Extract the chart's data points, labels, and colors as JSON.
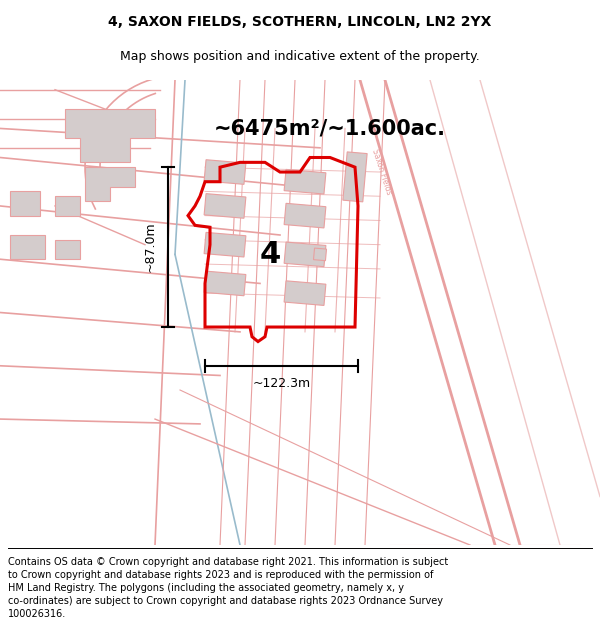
{
  "title": "4, SAXON FIELDS, SCOTHERN, LINCOLN, LN2 2YX",
  "subtitle": "Map shows position and indicative extent of the property.",
  "area_text": "~6475m²/~1.600ac.",
  "width_text": "~122.3m",
  "height_text": "~87.0m",
  "plot_label": "4",
  "footer_lines": [
    "Contains OS data © Crown copyright and database right 2021. This information is subject",
    "to Crown copyright and database rights 2023 and is reproduced with the permission of",
    "HM Land Registry. The polygons (including the associated geometry, namely x, y",
    "co-ordinates) are subject to Crown copyright and database rights 2023 Ordnance Survey",
    "100026316."
  ],
  "road_color": "#e8a0a0",
  "road_color2": "#f0c8c8",
  "blue_color": "#99bbcc",
  "bldg_fill": "#d4cccc",
  "bldg_edge": "#e8a0a0",
  "red_color": "#dd0000",
  "black": "#000000",
  "white": "#ffffff",
  "title_fontsize": 10,
  "subtitle_fontsize": 9,
  "area_fontsize": 15,
  "label_fontsize": 22,
  "dim_fontsize": 9,
  "footer_fontsize": 7
}
